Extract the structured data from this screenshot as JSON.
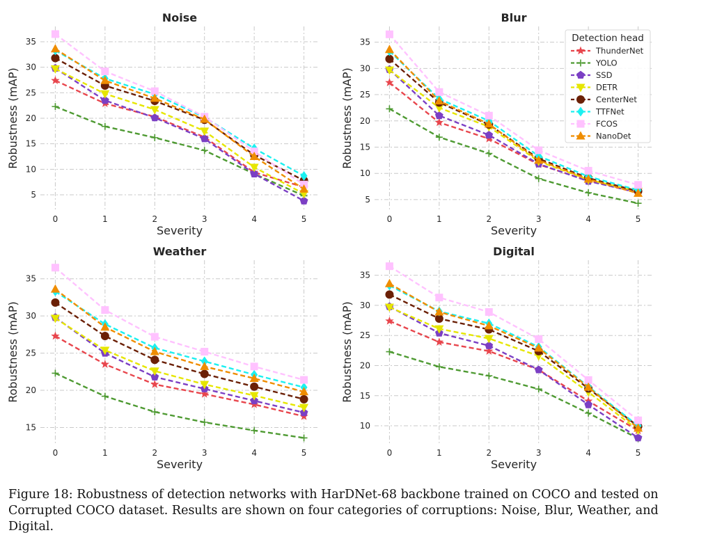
{
  "caption": "Figure 18: Robustness of detection networks with HarDNet-68 backbone trained on COCO and tested on Corrupted COCO dataset. Results are shown on four categories of corruptions: Noise, Blur, Weather, and Digital.",
  "legend_title": "Detection head",
  "colors": {
    "ThunderNet": "#e8464d",
    "YOLO": "#4e9a32",
    "SSD": "#7b3fc4",
    "DETR": "#e6e600",
    "CenterNet": "#6b2006",
    "TTFNet": "#1cf0f0",
    "FCOS": "#ffc2ff",
    "NanoDet": "#ef8d00"
  },
  "markers": {
    "ThunderNet": "star",
    "YOLO": "plus",
    "SSD": "pentagon",
    "DETR": "triangle-down",
    "CenterNet": "circle",
    "TTFNet": "diamond",
    "FCOS": "square",
    "NanoDet": "triangle-up"
  },
  "chart_data": [
    {
      "type": "line",
      "title": "Noise",
      "xlabel": "Severity",
      "ylabel": "Robustness (mAP)",
      "x": [
        0,
        1,
        2,
        3,
        4,
        5
      ],
      "xlim": [
        -0.3,
        5.3
      ],
      "ylim": [
        2,
        38
      ],
      "yticks": [
        5,
        10,
        15,
        20,
        25,
        30,
        35
      ],
      "grid": true,
      "legend": "none",
      "series": [
        {
          "name": "ThunderNet",
          "values": [
            27.4,
            22.9,
            20.3,
            16.3,
            9.4,
            6.5
          ]
        },
        {
          "name": "YOLO",
          "values": [
            22.3,
            18.4,
            16.2,
            13.7,
            9.1,
            4.8
          ]
        },
        {
          "name": "SSD",
          "values": [
            29.8,
            23.5,
            20.1,
            16.0,
            9.1,
            3.8
          ]
        },
        {
          "name": "DETR",
          "values": [
            29.7,
            24.8,
            21.7,
            17.5,
            10.4,
            5.2
          ]
        },
        {
          "name": "CenterNet",
          "values": [
            31.8,
            26.4,
            23.4,
            19.7,
            12.8,
            7.8
          ]
        },
        {
          "name": "TTFNet",
          "values": [
            33.3,
            27.8,
            24.7,
            20.2,
            14.1,
            8.7
          ]
        },
        {
          "name": "FCOS",
          "values": [
            36.5,
            29.2,
            25.3,
            20.3,
            13.5,
            7.0
          ]
        },
        {
          "name": "NanoDet",
          "values": [
            33.6,
            27.4,
            23.9,
            19.8,
            12.5,
            6.1
          ]
        }
      ]
    },
    {
      "type": "line",
      "title": "Blur",
      "xlabel": "Severity",
      "ylabel": "Robustness (mAP)",
      "x": [
        0,
        1,
        2,
        3,
        4,
        5
      ],
      "xlim": [
        -0.3,
        5.3
      ],
      "ylim": [
        3,
        38
      ],
      "yticks": [
        5,
        10,
        15,
        20,
        25,
        30,
        35
      ],
      "grid": true,
      "legend": "top-right",
      "series": [
        {
          "name": "ThunderNet",
          "values": [
            27.3,
            19.7,
            16.6,
            11.7,
            8.6,
            6.3
          ]
        },
        {
          "name": "YOLO",
          "values": [
            22.3,
            16.9,
            13.8,
            9.0,
            6.3,
            4.3
          ]
        },
        {
          "name": "SSD",
          "values": [
            29.8,
            21.0,
            17.3,
            11.8,
            8.5,
            6.4
          ]
        },
        {
          "name": "DETR",
          "values": [
            29.7,
            22.5,
            18.9,
            12.3,
            8.8,
            6.6
          ]
        },
        {
          "name": "CenterNet",
          "values": [
            31.8,
            23.5,
            19.3,
            12.8,
            9.1,
            6.6
          ]
        },
        {
          "name": "TTFNet",
          "values": [
            33.3,
            24.2,
            20.0,
            13.3,
            9.4,
            6.8
          ]
        },
        {
          "name": "FCOS",
          "values": [
            36.5,
            25.5,
            21.0,
            14.4,
            10.5,
            7.8
          ]
        },
        {
          "name": "NanoDet",
          "values": [
            33.6,
            23.8,
            19.4,
            12.5,
            8.9,
            6.2
          ]
        }
      ]
    },
    {
      "type": "line",
      "title": "Weather",
      "xlabel": "Severity",
      "ylabel": "Robustness (mAP)",
      "x": [
        0,
        1,
        2,
        3,
        4,
        5
      ],
      "xlim": [
        -0.3,
        5.3
      ],
      "ylim": [
        12.8,
        37.5
      ],
      "yticks": [
        15,
        20,
        25,
        30,
        35
      ],
      "grid": true,
      "legend": "none",
      "series": [
        {
          "name": "ThunderNet",
          "values": [
            27.3,
            23.5,
            20.8,
            19.5,
            18.1,
            16.5
          ]
        },
        {
          "name": "YOLO",
          "values": [
            22.3,
            19.2,
            17.1,
            15.7,
            14.6,
            13.6
          ]
        },
        {
          "name": "SSD",
          "values": [
            29.8,
            25.0,
            21.8,
            20.2,
            18.6,
            17.0
          ]
        },
        {
          "name": "DETR",
          "values": [
            29.7,
            25.4,
            22.6,
            20.8,
            19.3,
            17.7
          ]
        },
        {
          "name": "CenterNet",
          "values": [
            31.8,
            27.3,
            24.1,
            22.2,
            20.5,
            18.8
          ]
        },
        {
          "name": "TTFNet",
          "values": [
            33.3,
            28.9,
            25.7,
            23.9,
            22.1,
            20.4
          ]
        },
        {
          "name": "FCOS",
          "values": [
            36.5,
            30.8,
            27.2,
            25.2,
            23.2,
            21.4
          ]
        },
        {
          "name": "NanoDet",
          "values": [
            33.6,
            28.5,
            25.2,
            23.2,
            21.6,
            19.8
          ]
        }
      ]
    },
    {
      "type": "line",
      "title": "Digital",
      "xlabel": "Severity",
      "ylabel": "Robustness (mAP)",
      "x": [
        0,
        1,
        2,
        3,
        4,
        5
      ],
      "xlim": [
        -0.3,
        5.3
      ],
      "ylim": [
        7,
        37.5
      ],
      "yticks": [
        10,
        15,
        20,
        25,
        30,
        35
      ],
      "grid": true,
      "legend": "none",
      "series": [
        {
          "name": "ThunderNet",
          "values": [
            27.4,
            23.9,
            22.4,
            19.3,
            14.1,
            9.2
          ]
        },
        {
          "name": "YOLO",
          "values": [
            22.3,
            19.8,
            18.3,
            16.1,
            12.1,
            7.9
          ]
        },
        {
          "name": "SSD",
          "values": [
            29.8,
            25.4,
            23.3,
            19.3,
            13.5,
            8.0
          ]
        },
        {
          "name": "DETR",
          "values": [
            29.7,
            26.1,
            24.5,
            21.6,
            15.6,
            9.3
          ]
        },
        {
          "name": "CenterNet",
          "values": [
            31.8,
            27.8,
            26.0,
            22.4,
            16.2,
            9.9
          ]
        },
        {
          "name": "TTFNet",
          "values": [
            33.3,
            29.0,
            27.0,
            23.1,
            16.5,
            10.0
          ]
        },
        {
          "name": "FCOS",
          "values": [
            36.5,
            31.3,
            28.9,
            24.4,
            17.6,
            10.9
          ]
        },
        {
          "name": "NanoDet",
          "values": [
            33.6,
            28.9,
            26.6,
            22.9,
            16.4,
            9.6
          ]
        }
      ]
    }
  ]
}
